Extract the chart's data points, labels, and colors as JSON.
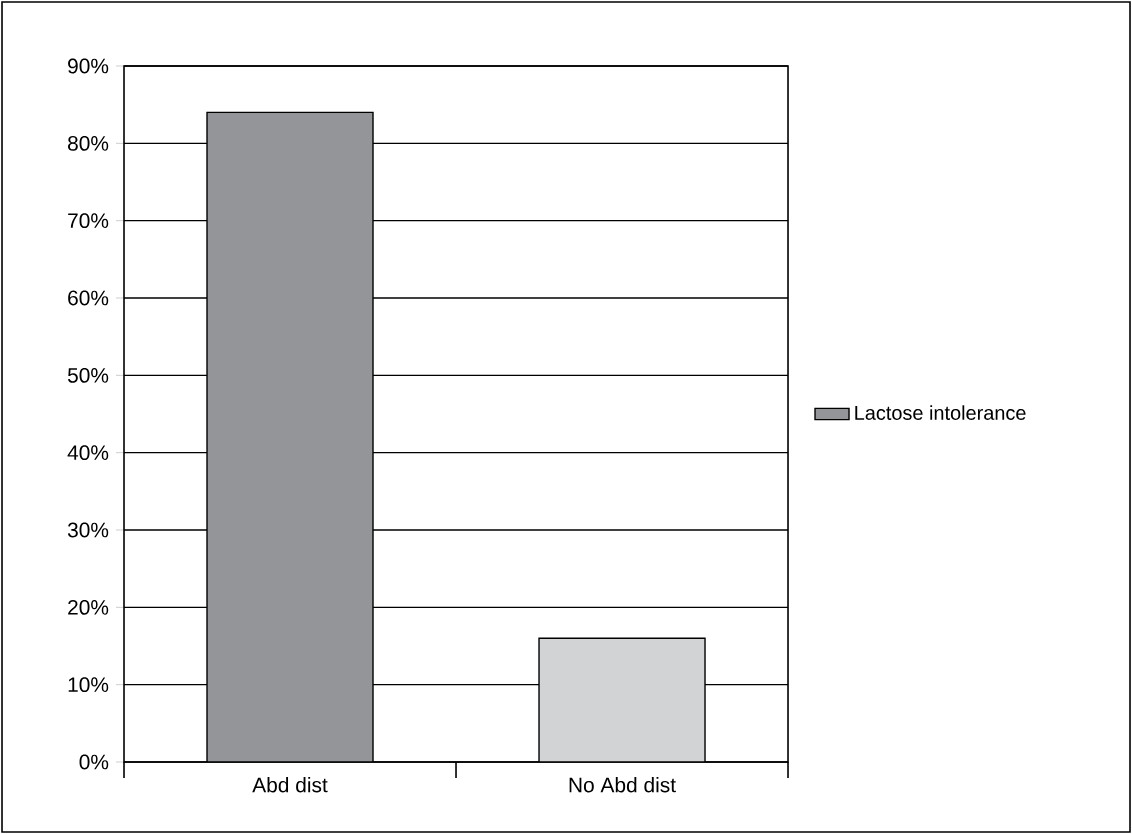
{
  "chart_data": {
    "type": "bar",
    "categories": [
      "Abd dist",
      "No Abd dist"
    ],
    "series": [
      {
        "name": "Lactose intolerance",
        "colors": [
          "#939598",
          "#d1d3d4"
        ],
        "values": [
          84,
          16
        ]
      }
    ],
    "ylim": [
      0,
      90
    ],
    "yticks": [
      {
        "value": 0,
        "label": "0%"
      },
      {
        "value": 10,
        "label": "10%"
      },
      {
        "value": 20,
        "label": "20%"
      },
      {
        "value": 30,
        "label": "30%"
      },
      {
        "value": 40,
        "label": "40%"
      },
      {
        "value": 50,
        "label": "50%"
      },
      {
        "value": 60,
        "label": "60%"
      },
      {
        "value": 70,
        "label": "70%"
      },
      {
        "value": 80,
        "label": "80%"
      },
      {
        "value": 90,
        "label": "90%"
      }
    ],
    "grid": "y",
    "legend": "right"
  }
}
